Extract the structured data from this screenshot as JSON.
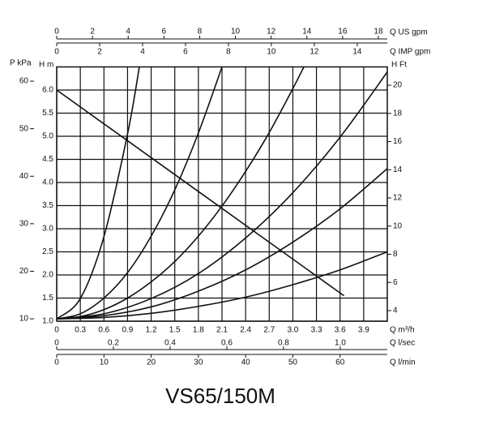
{
  "chart_data": {
    "type": "line",
    "title": "VS65/150M",
    "grid": true,
    "color": "#111111",
    "x_label": "Q m³/h",
    "xlim": [
      0,
      4.2
    ],
    "xticks": [
      0,
      0.3,
      0.6,
      0.9,
      1.2,
      1.5,
      1.8,
      2.1,
      2.4,
      2.7,
      {
        "value": 3.0,
        "label": "3.0"
      },
      3.3,
      3.6,
      3.9
    ],
    "y_label": "H m",
    "ylim": [
      1.0,
      6.5
    ],
    "yticks": [
      {
        "value": 1.0,
        "label": "1.0"
      },
      1.5,
      {
        "value": 2.0,
        "label": "2.0"
      },
      2.5,
      {
        "value": 3.0,
        "label": "3.0"
      },
      3.5,
      {
        "value": 4.0,
        "label": "4.0"
      },
      4.5,
      {
        "value": 5.0,
        "label": "5.0"
      },
      5.5,
      {
        "value": 6.0,
        "label": "6.0"
      }
    ],
    "kpa_axis": {
      "label": "P kPa",
      "lim": [
        9.5,
        63
      ],
      "ticks": [
        10,
        20,
        30,
        40,
        50,
        60
      ]
    },
    "ft_axis": {
      "label": "H Ft",
      "lim": [
        3.25,
        21.3
      ],
      "ticks": [
        4,
        6,
        8,
        10,
        12,
        14,
        16,
        18,
        20
      ]
    },
    "us_gpm_axis": {
      "label": "Q US gpm",
      "lim": [
        0,
        18.5
      ],
      "ticks": [
        0,
        2,
        4,
        6,
        8,
        10,
        12,
        14,
        16,
        18
      ]
    },
    "imp_gpm_axis": {
      "label": "Q IMP gpm",
      "lim": [
        0,
        15.4
      ],
      "ticks": [
        0,
        2,
        4,
        6,
        8,
        10,
        12,
        14
      ]
    },
    "lsec_axis": {
      "label": "Q l/sec",
      "lim": [
        0,
        1.166
      ],
      "ticks": [
        0,
        0.2,
        0.4,
        0.6,
        0.8,
        {
          "value": 1.0,
          "label": "1.0"
        }
      ]
    },
    "lmin_axis": {
      "label": "Q l/min",
      "lim": [
        0,
        70
      ],
      "ticks": [
        0,
        10,
        20,
        30,
        40,
        50,
        60
      ]
    },
    "series": [
      {
        "color": "#111111",
        "x": [
          0,
          0.3,
          0.6,
          0.9,
          1.05
        ],
        "values": [
          1.05,
          1.49,
          2.83,
          5.05,
          6.5
        ]
      },
      {
        "color": "#111111",
        "x": [
          0,
          0.3,
          0.6,
          0.9,
          1.2,
          1.5,
          1.8,
          2.1
        ],
        "values": [
          1.05,
          1.16,
          1.5,
          2.05,
          2.84,
          3.84,
          5.07,
          6.5
        ]
      },
      {
        "color": "#111111",
        "x": [
          0,
          0.3,
          0.6,
          0.9,
          1.2,
          1.5,
          1.8,
          2.1,
          2.4,
          2.7,
          3.0,
          3.14
        ],
        "values": [
          1.05,
          1.1,
          1.25,
          1.5,
          1.85,
          2.29,
          2.84,
          3.49,
          4.24,
          5.08,
          6.03,
          6.5
        ]
      },
      {
        "color": "#111111",
        "x": [
          0,
          0.6,
          1.2,
          1.8,
          2.4,
          3.0,
          3.6,
          4.2
        ],
        "values": [
          1.05,
          1.16,
          1.49,
          2.03,
          2.8,
          3.78,
          4.98,
          6.39
        ]
      },
      {
        "color": "#111111",
        "x": [
          0,
          0.6,
          1.2,
          1.8,
          2.4,
          3.0,
          3.6,
          4.2
        ],
        "values": [
          1.05,
          1.12,
          1.31,
          1.65,
          2.11,
          2.71,
          3.43,
          4.3
        ]
      },
      {
        "color": "#111111",
        "x": [
          0,
          0.6,
          1.2,
          1.8,
          2.4,
          3.0,
          3.6,
          4.2
        ],
        "values": [
          1.05,
          1.08,
          1.17,
          1.32,
          1.52,
          1.79,
          2.11,
          2.5
        ]
      },
      {
        "color": "#111111",
        "x": [
          0,
          3.65
        ],
        "values": [
          6.0,
          1.55
        ]
      }
    ]
  }
}
